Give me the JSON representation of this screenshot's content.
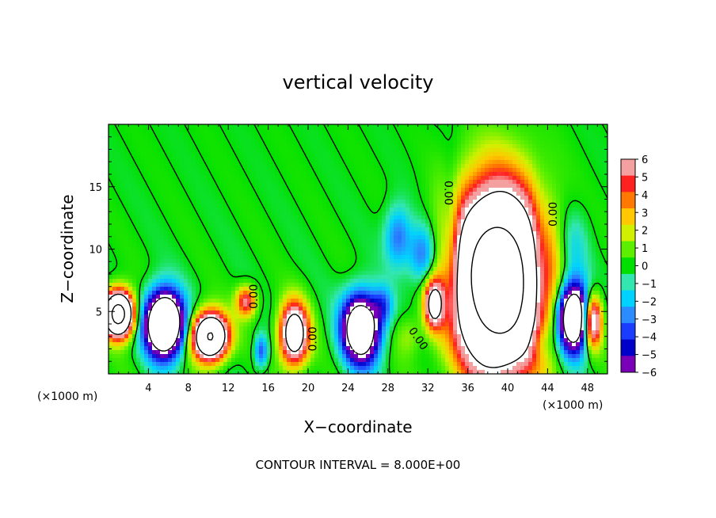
{
  "chart_data": {
    "type": "heatmap",
    "title": "vertical velocity",
    "xlabel": "X−coordinate",
    "ylabel": "Z−coordinate",
    "x_unit": "(×1000 m)",
    "z_unit": "(×1000 m)",
    "xlim": [
      0,
      50
    ],
    "ylim": [
      0,
      20
    ],
    "x_ticks": [
      4,
      8,
      12,
      16,
      20,
      24,
      28,
      32,
      36,
      40,
      44,
      48
    ],
    "y_ticks": [
      5,
      10,
      15
    ],
    "colorbar": {
      "ticks": [
        "6",
        "5",
        "4",
        "3",
        "2",
        "1",
        "0",
        "−1",
        "−2",
        "−3",
        "−4",
        "−5",
        "−6"
      ],
      "range": [
        -6,
        6
      ],
      "colors": [
        "#7a00b8",
        "#0000c8",
        "#1a3cff",
        "#2a8cff",
        "#00d2ff",
        "#33e6b0",
        "#00e000",
        "#5cf000",
        "#d0f000",
        "#ffc800",
        "#ff7800",
        "#ff2020",
        "#f5a0a0"
      ]
    },
    "contour_labels": [
      "0.00",
      "0.00",
      "0.00",
      "0.00",
      "0.00"
    ],
    "contour_interval_label": "CONTOUR INTERVAL = 8.000E+00",
    "features": [
      {
        "x": 1.0,
        "z": 4.8,
        "sx": 1.4,
        "sz": 1.7,
        "w": 20
      },
      {
        "x": 5.6,
        "z": 4.0,
        "sx": 1.8,
        "sz": 2.4,
        "w": -18
      },
      {
        "x": 10.2,
        "z": 3.0,
        "sx": 1.7,
        "sz": 1.8,
        "w": 17
      },
      {
        "x": 13.8,
        "z": 5.8,
        "sx": 1.0,
        "sz": 1.2,
        "w": 6
      },
      {
        "x": 15.3,
        "z": 1.8,
        "sx": 0.7,
        "sz": 1.3,
        "w": -4
      },
      {
        "x": 18.6,
        "z": 3.2,
        "sx": 1.4,
        "sz": 2.4,
        "w": 12
      },
      {
        "x": 25.3,
        "z": 3.6,
        "sx": 1.8,
        "sz": 2.6,
        "w": -14
      },
      {
        "x": 27.5,
        "z": 5.5,
        "sx": 1.0,
        "sz": 1.5,
        "w": -3
      },
      {
        "x": 29.0,
        "z": 11.0,
        "sx": 1.3,
        "sz": 2.4,
        "w": -3.5
      },
      {
        "x": 31.5,
        "z": 9.5,
        "sx": 1.4,
        "sz": 2.4,
        "w": -4
      },
      {
        "x": 32.6,
        "z": 5.6,
        "sx": 0.9,
        "sz": 1.8,
        "w": 9
      },
      {
        "x": 30.0,
        "z": 3.0,
        "sx": 1.3,
        "sz": 1.6,
        "w": 1.5
      },
      {
        "x": 39.0,
        "z": 7.5,
        "sx": 4.2,
        "sz": 6.8,
        "w": 24
      },
      {
        "x": 34.3,
        "z": 10.0,
        "sx": 0.9,
        "sz": 6.0,
        "w": -2.2
      },
      {
        "x": 43.2,
        "z": 9.0,
        "sx": 1.0,
        "sz": 5.0,
        "w": -2.2
      },
      {
        "x": 46.6,
        "z": 4.5,
        "sx": 1.5,
        "sz": 2.6,
        "w": -15
      },
      {
        "x": 48.5,
        "z": 4.2,
        "sx": 0.9,
        "sz": 2.0,
        "w": 10
      },
      {
        "x": 43.5,
        "z": 2.5,
        "sx": 1.0,
        "sz": 1.4,
        "w": -1.5
      },
      {
        "x": 46.5,
        "z": 10.0,
        "sx": 1.5,
        "sz": 3.0,
        "w": -2.0
      }
    ]
  }
}
